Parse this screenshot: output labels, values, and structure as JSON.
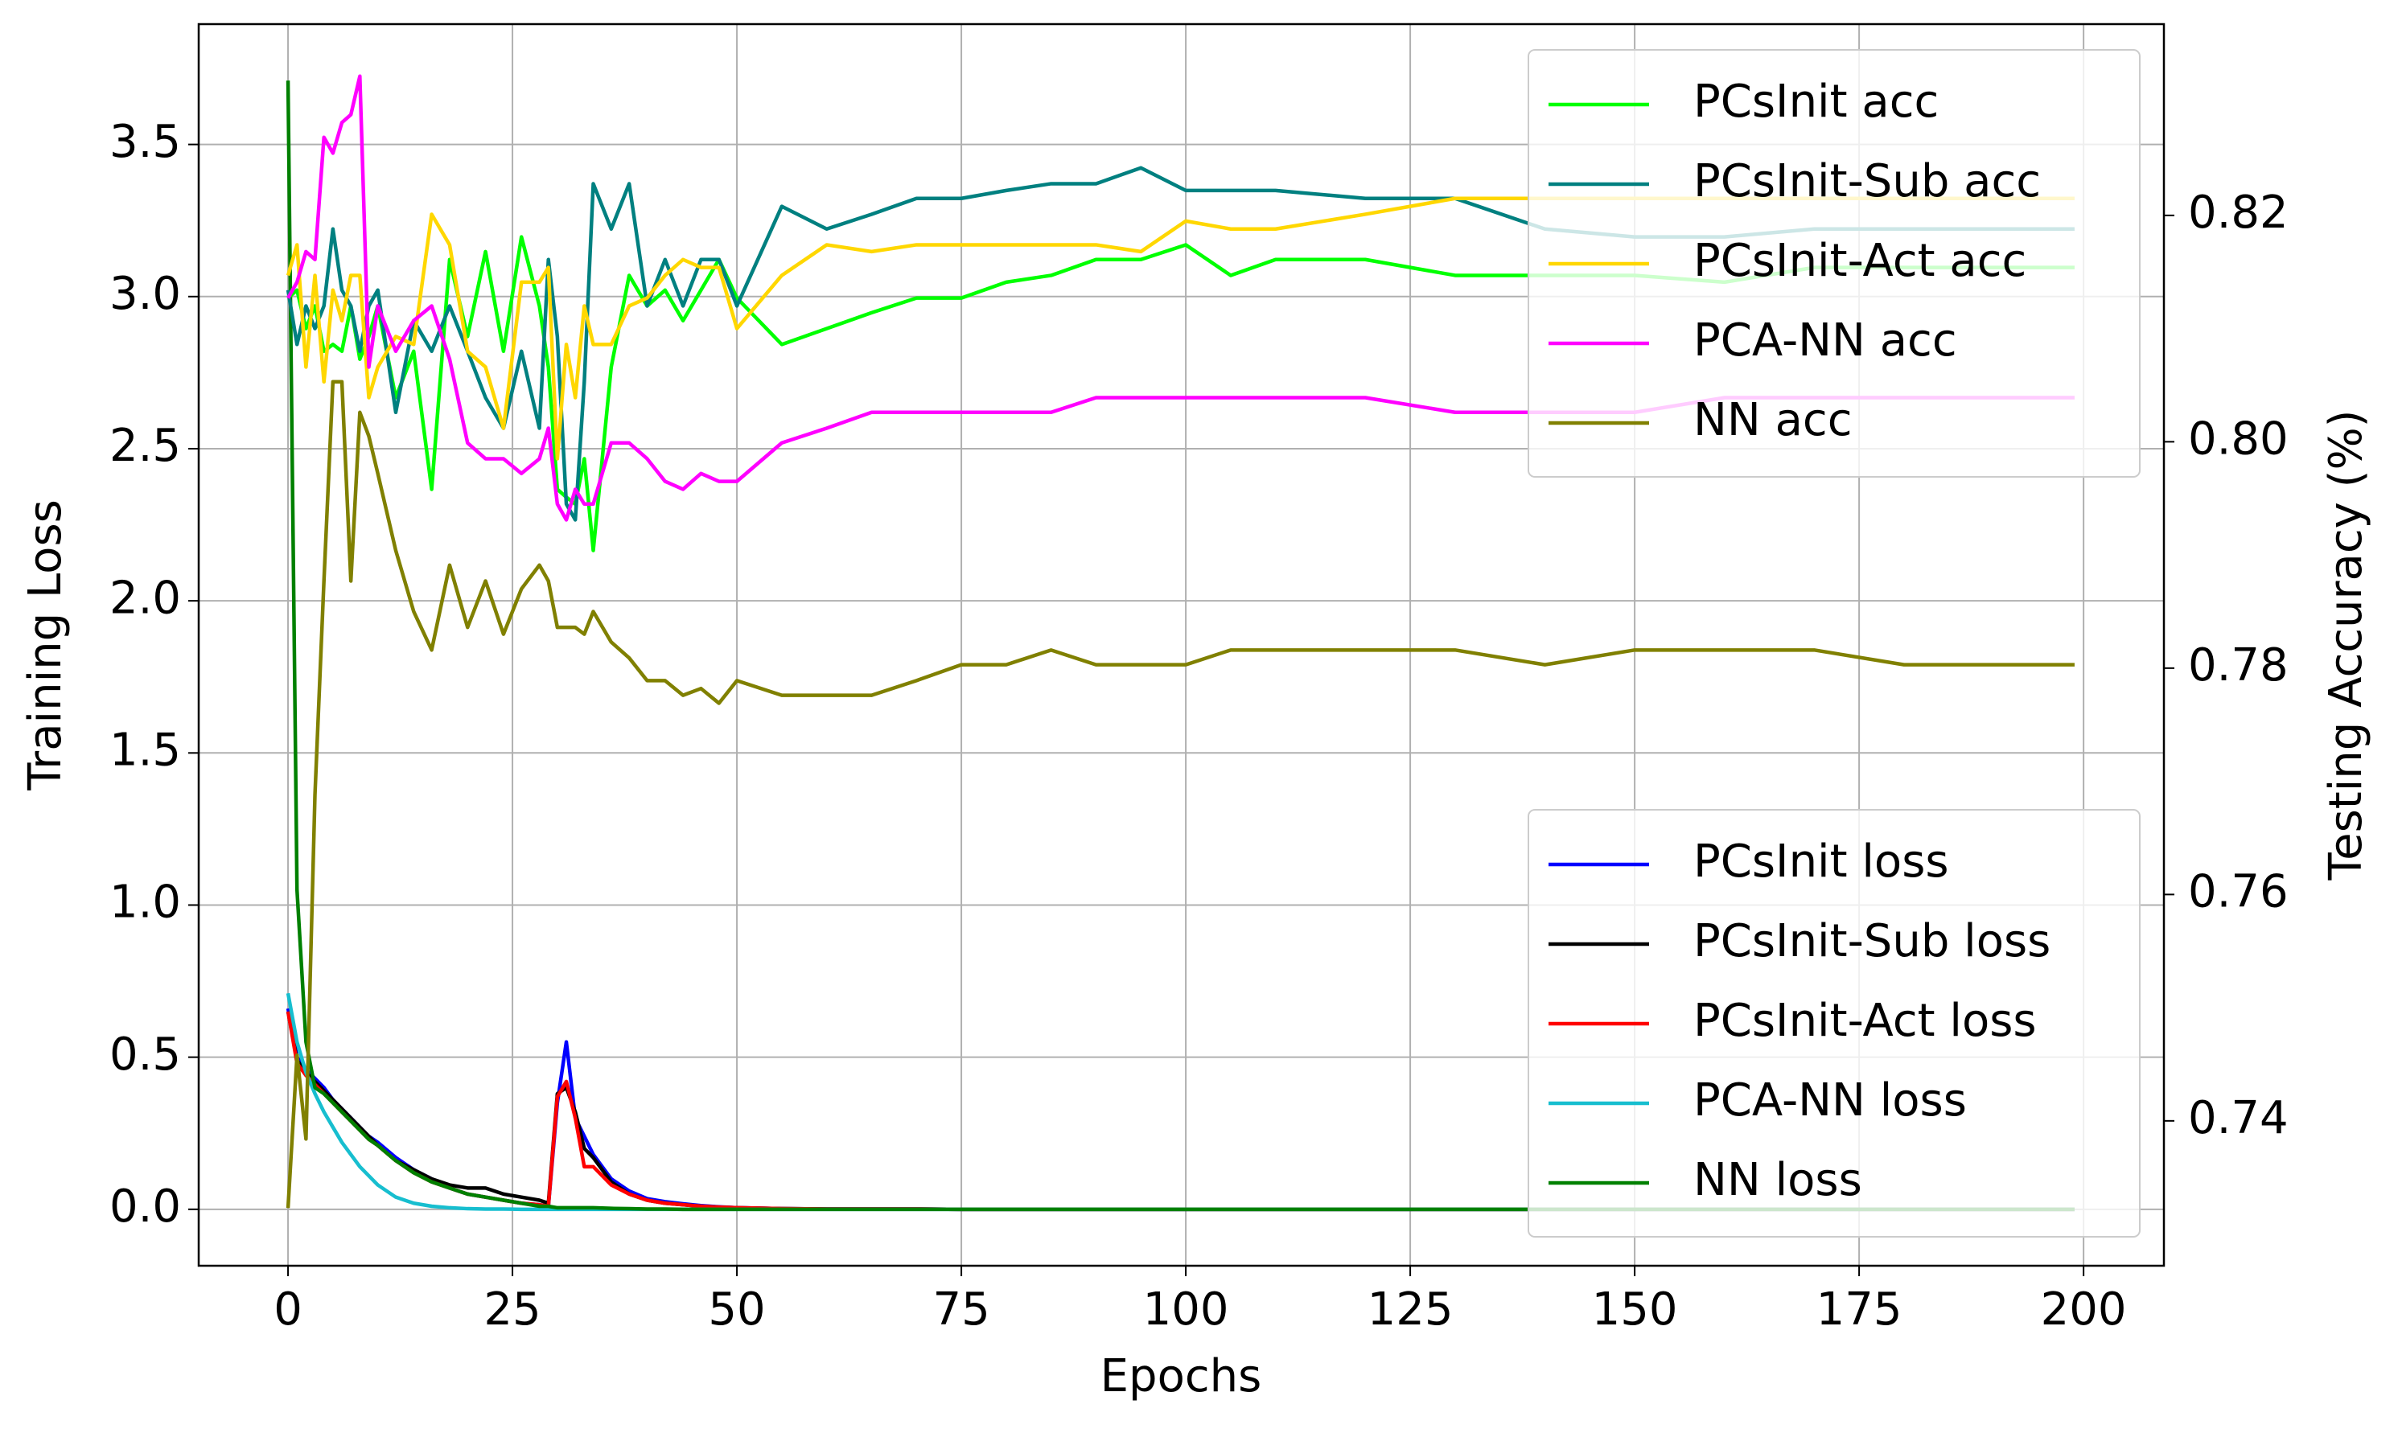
{
  "chart_data": {
    "type": "line",
    "xlabel": "Epochs",
    "ylabel": "Training Loss",
    "y2label": "Testing Accuracy (%)",
    "x": [
      0,
      1,
      2,
      3,
      4,
      5,
      6,
      7,
      8,
      9,
      10,
      12,
      14,
      16,
      18,
      20,
      22,
      24,
      26,
      28,
      29,
      30,
      31,
      32,
      33,
      34,
      36,
      38,
      40,
      42,
      44,
      46,
      48,
      50,
      55,
      60,
      65,
      70,
      75,
      80,
      85,
      90,
      95,
      100,
      105,
      110,
      120,
      130,
      140,
      150,
      160,
      170,
      180,
      190,
      199
    ],
    "xlim": [
      -9.95,
      208.95
    ],
    "xticks": [
      0,
      25,
      50,
      75,
      100,
      125,
      150,
      175,
      200
    ],
    "ylim": [
      -0.1855,
      3.8955
    ],
    "yticks": [
      {
        "value": 0,
        "label": "0.0"
      },
      0.5,
      {
        "value": 1,
        "label": "1.0"
      },
      1.5,
      {
        "value": 2,
        "label": "2.0"
      },
      2.5,
      {
        "value": 3,
        "label": "3.0"
      },
      3.5
    ],
    "y2lim": [
      0.7272,
      0.8369
    ],
    "y2ticks": [
      0.74,
      0.76,
      0.78,
      {
        "value": 0.8,
        "label": "0.80"
      },
      0.82
    ],
    "grid": true,
    "legend": {
      "y2": "upper right",
      "y": "lower right"
    },
    "series": [
      {
        "name": "PCsInit acc",
        "color": "#00ff00",
        "axis": "y2",
        "values": [
          0.8127,
          0.8134,
          0.81,
          0.812,
          0.808,
          0.8086,
          0.808,
          0.812,
          0.8073,
          0.8093,
          0.812,
          0.8039,
          0.808,
          0.7958,
          0.8161,
          0.8093,
          0.8168,
          0.808,
          0.8181,
          0.812,
          0.8066,
          0.7958,
          0.7951,
          0.7945,
          0.7985,
          0.7904,
          0.8066,
          0.8147,
          0.812,
          0.8134,
          0.8107,
          0.8134,
          0.8161,
          0.8127,
          0.8086,
          0.81,
          0.8114,
          0.8127,
          0.8127,
          0.8141,
          0.8147,
          0.8161,
          0.8161,
          0.8174,
          0.8147,
          0.8161,
          0.8161,
          0.8147,
          0.8147,
          0.8147,
          0.8141,
          0.8154,
          0.8154,
          0.8154,
          0.8154
        ]
      },
      {
        "name": "PCsInit-Sub acc",
        "color": "#008080",
        "axis": "y2",
        "values": [
          0.8134,
          0.8086,
          0.812,
          0.81,
          0.812,
          0.8188,
          0.8134,
          0.812,
          0.808,
          0.812,
          0.8134,
          0.8026,
          0.8107,
          0.808,
          0.812,
          0.808,
          0.8039,
          0.8012,
          0.808,
          0.8012,
          0.8161,
          0.8093,
          0.7945,
          0.7931,
          0.8053,
          0.8228,
          0.8188,
          0.8228,
          0.812,
          0.8161,
          0.812,
          0.8161,
          0.8161,
          0.812,
          0.8208,
          0.8188,
          0.8201,
          0.8215,
          0.8215,
          0.8222,
          0.8228,
          0.8228,
          0.8242,
          0.8222,
          0.8222,
          0.8222,
          0.8215,
          0.8215,
          0.8188,
          0.8181,
          0.8181,
          0.8188,
          0.8188,
          0.8188,
          0.8188
        ]
      },
      {
        "name": "PCsInit-Act acc",
        "color": "#ffd700",
        "axis": "y2",
        "values": [
          0.8147,
          0.8174,
          0.8066,
          0.8147,
          0.8053,
          0.8134,
          0.8107,
          0.8147,
          0.8147,
          0.8039,
          0.8066,
          0.8093,
          0.8086,
          0.8201,
          0.8174,
          0.808,
          0.8066,
          0.8012,
          0.8141,
          0.8141,
          0.8154,
          0.7985,
          0.8086,
          0.8039,
          0.812,
          0.8086,
          0.8086,
          0.812,
          0.8127,
          0.8147,
          0.8161,
          0.8154,
          0.8154,
          0.81,
          0.8147,
          0.8174,
          0.8168,
          0.8174,
          0.8174,
          0.8174,
          0.8174,
          0.8174,
          0.8168,
          0.8195,
          0.8188,
          0.8188,
          0.8201,
          0.8215,
          0.8215,
          0.8215,
          0.8215,
          0.8215,
          0.8215,
          0.8215,
          0.8215
        ]
      },
      {
        "name": "PCA-NN acc",
        "color": "#ff00ff",
        "axis": "y2",
        "values": [
          0.8127,
          0.8141,
          0.8168,
          0.8161,
          0.8269,
          0.8255,
          0.8282,
          0.8289,
          0.8323,
          0.8066,
          0.812,
          0.808,
          0.8107,
          0.812,
          0.8073,
          0.7999,
          0.7985,
          0.7985,
          0.7972,
          0.7985,
          0.8012,
          0.7945,
          0.7931,
          0.7958,
          0.7945,
          0.7945,
          0.7999,
          0.7999,
          0.7985,
          0.7965,
          0.7958,
          0.7972,
          0.7965,
          0.7965,
          0.7999,
          0.8012,
          0.8026,
          0.8026,
          0.8026,
          0.8026,
          0.8026,
          0.8039,
          0.8039,
          0.8039,
          0.8039,
          0.8039,
          0.8039,
          0.8026,
          0.8026,
          0.8026,
          0.8039,
          0.8039,
          0.8039,
          0.8039,
          0.8039
        ]
      },
      {
        "name": "NN acc",
        "color": "#808000",
        "axis": "y2",
        "values": [
          0.7323,
          0.7458,
          0.7384,
          0.7688,
          0.7877,
          0.8053,
          0.8053,
          0.7877,
          0.8026,
          0.8005,
          0.7972,
          0.7904,
          0.785,
          0.7816,
          0.7891,
          0.7836,
          0.7877,
          0.783,
          0.787,
          0.7891,
          0.7877,
          0.7836,
          0.7836,
          0.7836,
          0.783,
          0.785,
          0.7823,
          0.7809,
          0.7789,
          0.7789,
          0.7776,
          0.7782,
          0.7769,
          0.7789,
          0.7776,
          0.7776,
          0.7776,
          0.7789,
          0.7803,
          0.7803,
          0.7816,
          0.7803,
          0.7803,
          0.7803,
          0.7816,
          0.7816,
          0.7816,
          0.7816,
          0.7803,
          0.7816,
          0.7816,
          0.7816,
          0.7803,
          0.7803,
          0.7803
        ]
      },
      {
        "name": "PCsInit loss",
        "color": "#0000ff",
        "axis": "y",
        "values": [
          0.66,
          0.5,
          0.46,
          0.43,
          0.4,
          0.36,
          0.33,
          0.3,
          0.27,
          0.24,
          0.22,
          0.17,
          0.13,
          0.1,
          0.07,
          0.05,
          0.04,
          0.03,
          0.02,
          0.015,
          0.01,
          0.35,
          0.55,
          0.3,
          0.24,
          0.18,
          0.1,
          0.06,
          0.035,
          0.025,
          0.018,
          0.012,
          0.008,
          0.005,
          0.002,
          0.001,
          0.001,
          0.001,
          0,
          0,
          0,
          0,
          0,
          0,
          0,
          0,
          0,
          0,
          0,
          0,
          0,
          0,
          0,
          0,
          0
        ]
      },
      {
        "name": "PCsInit-Sub loss",
        "color": "#000000",
        "axis": "y",
        "values": [
          0.65,
          0.49,
          0.45,
          0.42,
          0.39,
          0.36,
          0.33,
          0.3,
          0.27,
          0.24,
          0.21,
          0.16,
          0.13,
          0.1,
          0.08,
          0.07,
          0.07,
          0.05,
          0.04,
          0.03,
          0.02,
          0.38,
          0.4,
          0.32,
          0.2,
          0.17,
          0.09,
          0.05,
          0.03,
          0.02,
          0.015,
          0.01,
          0.007,
          0.005,
          0.002,
          0.001,
          0.001,
          0.001,
          0,
          0,
          0,
          0,
          0,
          0,
          0,
          0,
          0,
          0,
          0,
          0,
          0,
          0,
          0,
          0,
          0
        ]
      },
      {
        "name": "PCsInit-Act loss",
        "color": "#ff0000",
        "axis": "y",
        "values": [
          0.65,
          0.48,
          0.44,
          0.41,
          0.38,
          0.35,
          0.32,
          0.29,
          0.26,
          0.23,
          0.21,
          0.16,
          0.12,
          0.09,
          0.07,
          0.05,
          0.04,
          0.03,
          0.02,
          0.015,
          0.01,
          0.37,
          0.42,
          0.3,
          0.14,
          0.14,
          0.08,
          0.05,
          0.03,
          0.02,
          0.015,
          0.01,
          0.007,
          0.005,
          0.002,
          0.001,
          0.001,
          0.001,
          0,
          0,
          0,
          0,
          0,
          0,
          0,
          0,
          0,
          0,
          0,
          0,
          0,
          0,
          0,
          0,
          0
        ]
      },
      {
        "name": "PCA-NN loss",
        "color": "#17becf",
        "axis": "y",
        "values": [
          0.71,
          0.55,
          0.45,
          0.38,
          0.32,
          0.27,
          0.22,
          0.18,
          0.14,
          0.11,
          0.08,
          0.04,
          0.02,
          0.01,
          0.005,
          0.002,
          0.001,
          0.001,
          0,
          0,
          0,
          0,
          0,
          0,
          0,
          0,
          0,
          0,
          0,
          0,
          0,
          0,
          0,
          0,
          0,
          0,
          0,
          0,
          0,
          0,
          0,
          0,
          0,
          0,
          0,
          0,
          0,
          0,
          0,
          0,
          0,
          0,
          0,
          0,
          0
        ]
      },
      {
        "name": "NN loss",
        "color": "#008000",
        "axis": "y",
        "values": [
          3.71,
          1.05,
          0.55,
          0.4,
          0.38,
          0.35,
          0.32,
          0.29,
          0.26,
          0.23,
          0.21,
          0.16,
          0.12,
          0.09,
          0.07,
          0.05,
          0.04,
          0.03,
          0.02,
          0.01,
          0.01,
          0.005,
          0.005,
          0.005,
          0.005,
          0.005,
          0.003,
          0.002,
          0.001,
          0.001,
          0,
          0,
          0,
          0,
          0,
          0,
          0,
          0,
          0,
          0,
          0,
          0,
          0,
          0,
          0,
          0,
          0,
          0,
          0,
          0,
          0,
          0,
          0,
          0,
          0
        ]
      }
    ]
  }
}
